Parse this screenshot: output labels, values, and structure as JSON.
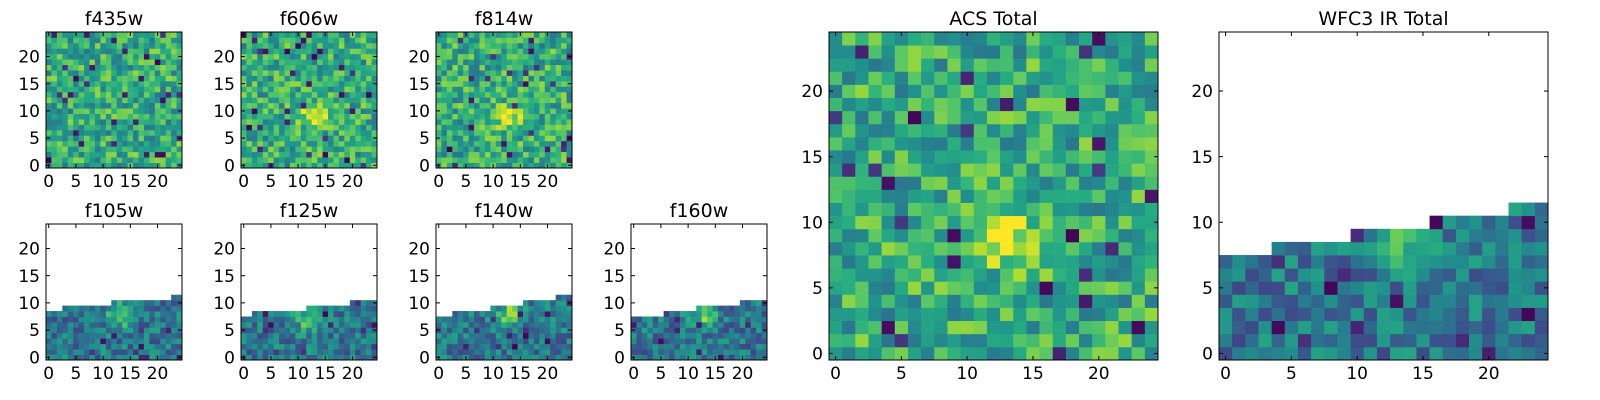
{
  "colormap": "viridis",
  "colors": {
    "frame": "#000000",
    "background": "#ffffff",
    "viridis_low": "#440154",
    "viridis_mid": "#21918c",
    "viridis_high": "#fde725"
  },
  "chart_data": [
    {
      "type": "heatmap",
      "title": "f435w",
      "grid": [
        25,
        25
      ],
      "xticks": [
        "0",
        "5",
        "10",
        "15",
        "20"
      ],
      "yticks": [
        "0",
        "5",
        "10",
        "15",
        "20"
      ],
      "xlim": [
        0,
        25
      ],
      "ylim": [
        0,
        25
      ],
      "filled_rows": 25,
      "peak": null
    },
    {
      "type": "heatmap",
      "title": "f606w",
      "grid": [
        25,
        25
      ],
      "xticks": [
        "0",
        "5",
        "10",
        "15",
        "20"
      ],
      "yticks": [
        "0",
        "5",
        "10",
        "15",
        "20"
      ],
      "xlim": [
        0,
        25
      ],
      "ylim": [
        0,
        25
      ],
      "filled_rows": 25,
      "peak": [
        13,
        9
      ]
    },
    {
      "type": "heatmap",
      "title": "f814w",
      "grid": [
        25,
        25
      ],
      "xticks": [
        "0",
        "5",
        "10",
        "15",
        "20"
      ],
      "yticks": [
        "0",
        "5",
        "10",
        "15",
        "20"
      ],
      "xlim": [
        0,
        25
      ],
      "ylim": [
        0,
        25
      ],
      "filled_rows": 25,
      "peak": [
        13,
        9
      ]
    },
    {
      "type": "heatmap",
      "title": "f105w",
      "grid": [
        25,
        25
      ],
      "xticks": [
        "0",
        "5",
        "10",
        "15",
        "20"
      ],
      "yticks": [
        "0",
        "5",
        "10",
        "15",
        "20"
      ],
      "xlim": [
        0,
        25
      ],
      "ylim": [
        0,
        25
      ],
      "filled_rows": 10,
      "edge_rows": [
        9,
        9,
        9,
        10,
        10,
        10,
        10,
        10,
        10,
        10,
        10,
        10,
        11,
        11,
        11,
        11,
        11,
        11,
        11,
        11,
        11,
        11,
        11,
        12,
        12
      ],
      "peak": [
        13,
        8
      ]
    },
    {
      "type": "heatmap",
      "title": "f125w",
      "grid": [
        25,
        25
      ],
      "xticks": [
        "0",
        "5",
        "10",
        "15",
        "20"
      ],
      "yticks": [
        "0",
        "5",
        "10",
        "15",
        "20"
      ],
      "xlim": [
        0,
        25
      ],
      "ylim": [
        0,
        25
      ],
      "filled_rows": 9,
      "edge_rows": [
        8,
        8,
        9,
        9,
        9,
        9,
        9,
        9,
        9,
        9,
        9,
        9,
        10,
        10,
        10,
        10,
        10,
        10,
        10,
        10,
        11,
        11,
        11,
        11,
        11
      ],
      "peak": [
        12,
        7
      ]
    },
    {
      "type": "heatmap",
      "title": "f140w",
      "grid": [
        25,
        25
      ],
      "xticks": [
        "0",
        "5",
        "10",
        "15",
        "20"
      ],
      "yticks": [
        "0",
        "5",
        "10",
        "15",
        "20"
      ],
      "xlim": [
        0,
        25
      ],
      "ylim": [
        0,
        25
      ],
      "filled_rows": 10,
      "edge_rows": [
        8,
        8,
        8,
        9,
        9,
        9,
        9,
        9,
        9,
        9,
        10,
        10,
        10,
        10,
        10,
        10,
        11,
        11,
        11,
        11,
        11,
        11,
        12,
        12,
        12
      ],
      "peak": [
        13,
        8
      ]
    },
    {
      "type": "heatmap",
      "title": "f160w",
      "grid": [
        25,
        25
      ],
      "xticks": [
        "0",
        "5",
        "10",
        "15",
        "20"
      ],
      "yticks": [
        "0",
        "5",
        "10",
        "15",
        "20"
      ],
      "xlim": [
        0,
        25
      ],
      "ylim": [
        0,
        25
      ],
      "filled_rows": 9,
      "edge_rows": [
        8,
        8,
        8,
        8,
        8,
        8,
        9,
        9,
        9,
        9,
        9,
        9,
        10,
        10,
        10,
        10,
        10,
        10,
        10,
        10,
        11,
        11,
        11,
        11,
        11
      ],
      "peak": [
        13,
        8
      ]
    },
    {
      "type": "heatmap",
      "title": "ACS Total",
      "grid": [
        25,
        25
      ],
      "xticks": [
        "0",
        "5",
        "10",
        "15",
        "20"
      ],
      "yticks": [
        "0",
        "5",
        "10",
        "15",
        "20"
      ],
      "xlim": [
        0,
        25
      ],
      "ylim": [
        0,
        25
      ],
      "filled_rows": 25,
      "peak": [
        13,
        9
      ]
    },
    {
      "type": "heatmap",
      "title": "WFC3 IR Total",
      "grid": [
        25,
        25
      ],
      "xticks": [
        "0",
        "5",
        "10",
        "15",
        "20"
      ],
      "yticks": [
        "0",
        "5",
        "10",
        "15",
        "20"
      ],
      "xlim": [
        0,
        25
      ],
      "ylim": [
        0,
        25
      ],
      "filled_rows": 10,
      "edge_rows": [
        8,
        8,
        8,
        8,
        9,
        9,
        9,
        9,
        9,
        9,
        10,
        10,
        10,
        10,
        10,
        10,
        11,
        11,
        11,
        11,
        11,
        11,
        12,
        12,
        12
      ],
      "peak": [
        13,
        9
      ]
    }
  ]
}
